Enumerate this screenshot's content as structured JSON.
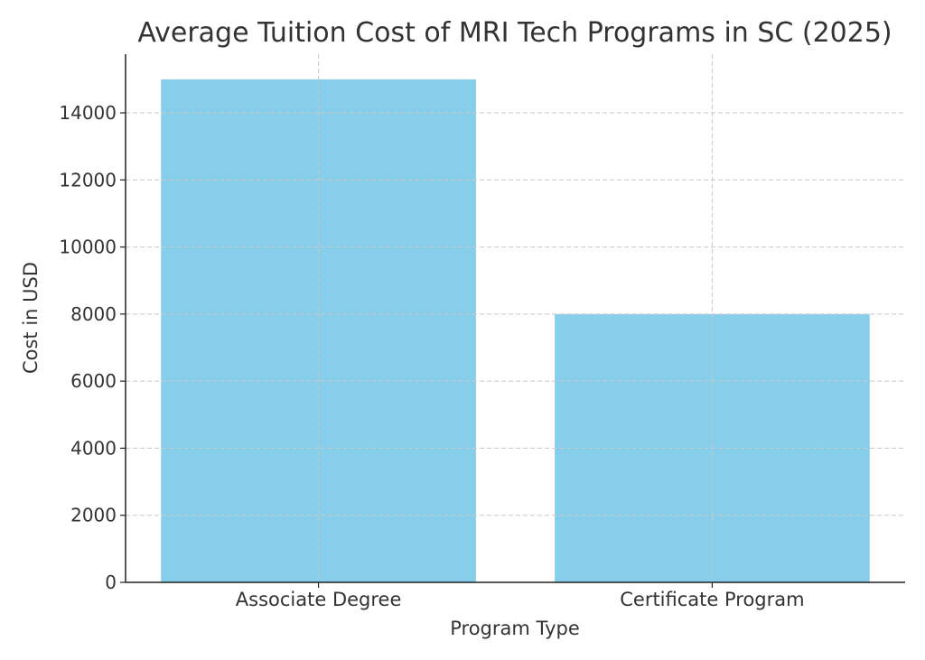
{
  "chart_data": {
    "type": "bar",
    "title": "Average Tuition Cost of MRI Tech Programs in SC (2025)",
    "xlabel": "Program Type",
    "ylabel": "Cost in USD",
    "categories": [
      "Associate Degree",
      "Certificate Program"
    ],
    "values": [
      15000,
      8000
    ],
    "ylim": [
      0,
      15750
    ],
    "yticks": [
      0,
      2000,
      4000,
      6000,
      8000,
      10000,
      12000,
      14000
    ],
    "grid": true,
    "bar_color": "#87CEEB"
  }
}
